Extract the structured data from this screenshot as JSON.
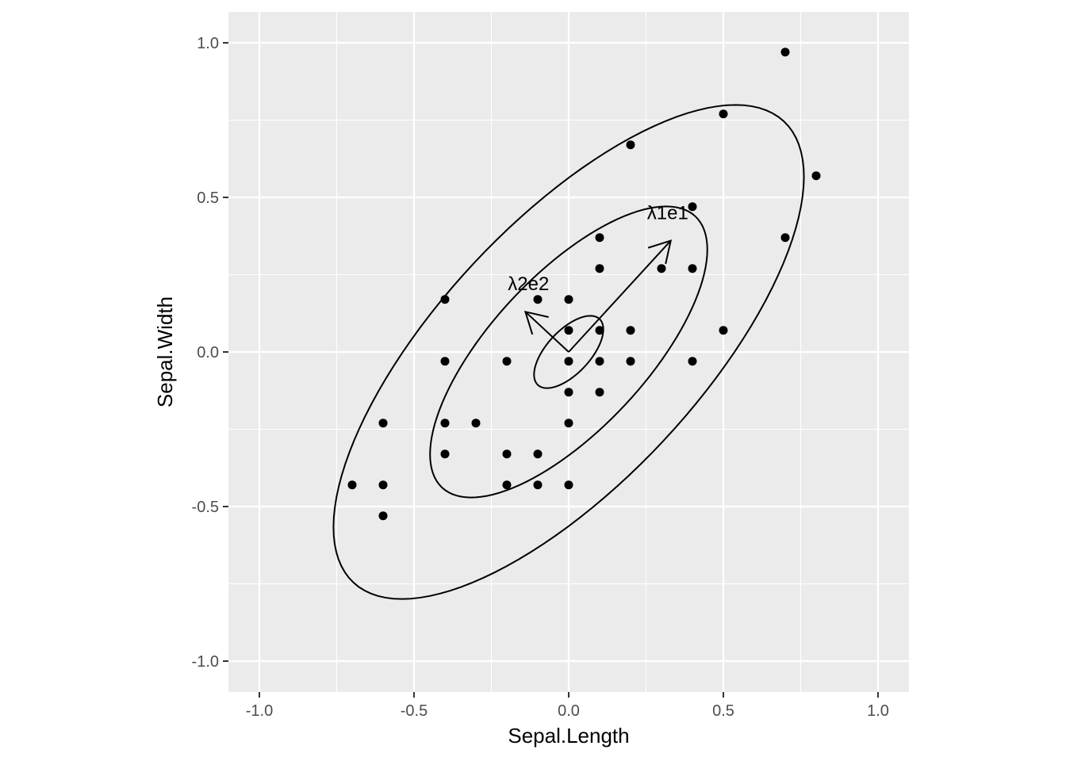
{
  "chart_data": {
    "type": "scatter",
    "title": "",
    "xlabel": "Sepal.Length",
    "ylabel": "Sepal.Width",
    "xlim": [
      -1.1,
      1.1
    ],
    "ylim": [
      -1.1,
      1.1
    ],
    "x_ticks": [
      -1.0,
      -0.5,
      0.0,
      0.5,
      1.0
    ],
    "x_tick_labels": [
      "-1.0",
      "-0.5",
      "0.0",
      "0.5",
      "1.0"
    ],
    "y_ticks": [
      -1.0,
      -0.5,
      0.0,
      0.5,
      1.0
    ],
    "y_tick_labels": [
      "-1.0",
      "-0.5",
      "0.0",
      "0.5",
      "1.0"
    ],
    "grid": true,
    "legend": "none",
    "background_color": "#ebebeb",
    "grid_color": "#ffffff",
    "point_color": "#000000",
    "points": [
      [
        0.7,
        0.97
      ],
      [
        0.5,
        0.77
      ],
      [
        0.2,
        0.67
      ],
      [
        0.8,
        0.57
      ],
      [
        0.4,
        0.47
      ],
      [
        0.7,
        0.37
      ],
      [
        0.1,
        0.37
      ],
      [
        0.1,
        0.27
      ],
      [
        0.3,
        0.27
      ],
      [
        0.4,
        0.27
      ],
      [
        -0.4,
        0.17
      ],
      [
        -0.1,
        0.17
      ],
      [
        0.0,
        0.17
      ],
      [
        0.0,
        0.07
      ],
      [
        0.1,
        0.07
      ],
      [
        0.2,
        0.07
      ],
      [
        0.5,
        0.07
      ],
      [
        -0.4,
        -0.03
      ],
      [
        -0.2,
        -0.03
      ],
      [
        0.0,
        -0.03
      ],
      [
        0.1,
        -0.03
      ],
      [
        0.2,
        -0.03
      ],
      [
        0.4,
        -0.03
      ],
      [
        0.0,
        -0.13
      ],
      [
        0.1,
        -0.13
      ],
      [
        -0.6,
        -0.23
      ],
      [
        -0.4,
        -0.23
      ],
      [
        -0.3,
        -0.23
      ],
      [
        0.0,
        -0.23
      ],
      [
        -0.4,
        -0.33
      ],
      [
        -0.2,
        -0.33
      ],
      [
        -0.1,
        -0.33
      ],
      [
        -0.7,
        -0.43
      ],
      [
        -0.6,
        -0.43
      ],
      [
        -0.2,
        -0.43
      ],
      [
        -0.1,
        -0.43
      ],
      [
        0.0,
        -0.43
      ],
      [
        -0.6,
        -0.53
      ]
    ],
    "ellipses": [
      {
        "semi_major": 0.146,
        "semi_minor": 0.07,
        "angle_deg": 47
      },
      {
        "semi_major": 0.6,
        "semi_minor": 0.25,
        "angle_deg": 47
      },
      {
        "semi_major": 1.02,
        "semi_minor": 0.42,
        "angle_deg": 47
      }
    ],
    "vectors": [
      {
        "label": "λ1e1",
        "from": [
          0,
          0
        ],
        "to": [
          0.33,
          0.36
        ],
        "label_at": [
          0.32,
          0.45
        ]
      },
      {
        "label": "λ2e2",
        "from": [
          0,
          0
        ],
        "to": [
          -0.14,
          0.13
        ],
        "label_at": [
          -0.13,
          0.22
        ]
      }
    ]
  }
}
